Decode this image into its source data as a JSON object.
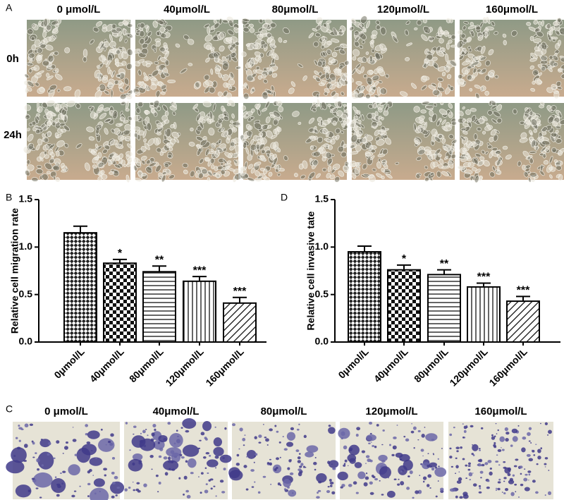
{
  "panel_a": {
    "label": "A",
    "columns": [
      "0 μmol/L",
      "40μmol/L",
      "80μmol/L",
      "120μmol/L",
      "160μmol/L"
    ],
    "rows": [
      "0h",
      "24h"
    ]
  },
  "chart_data": [
    {
      "type": "bar",
      "panel_label": "B",
      "ylabel": "Relative cell migration rate",
      "categories": [
        "0μmol/L",
        "40μmol/L",
        "80μmol/L",
        "120μmol/L",
        "160μmol/L"
      ],
      "values": [
        1.15,
        0.83,
        0.74,
        0.64,
        0.41
      ],
      "errors": [
        0.07,
        0.04,
        0.06,
        0.05,
        0.06
      ],
      "annotations": [
        null,
        "*",
        "**",
        "***",
        "***"
      ],
      "ylim": [
        0,
        1.5
      ],
      "yticks": [
        {
          "value": 0,
          "label": "0.0"
        },
        {
          "value": 0.5,
          "label": "0.5"
        },
        {
          "value": 1,
          "label": "1.0"
        },
        {
          "value": 1.5,
          "label": "1.5"
        }
      ]
    },
    {
      "type": "bar",
      "panel_label": "D",
      "ylabel": "Relative cell invasive tate",
      "categories": [
        "0μmol/L",
        "40μmol/L",
        "80μmol/L",
        "120μmol/L",
        "160μmol/L"
      ],
      "values": [
        0.95,
        0.76,
        0.71,
        0.58,
        0.43
      ],
      "errors": [
        0.06,
        0.05,
        0.05,
        0.04,
        0.05
      ],
      "annotations": [
        null,
        "*",
        "**",
        "***",
        "***"
      ],
      "ylim": [
        0,
        1.5
      ],
      "yticks": [
        {
          "value": 0,
          "label": "0.0"
        },
        {
          "value": 0.5,
          "label": "0.5"
        },
        {
          "value": 1,
          "label": "1.0"
        },
        {
          "value": 1.5,
          "label": "1.5"
        }
      ]
    }
  ],
  "panel_c": {
    "label": "C",
    "columns": [
      "0 μmol/L",
      "40μmol/L",
      "80μmol/L",
      "120μmol/L",
      "160μmol/L"
    ]
  }
}
